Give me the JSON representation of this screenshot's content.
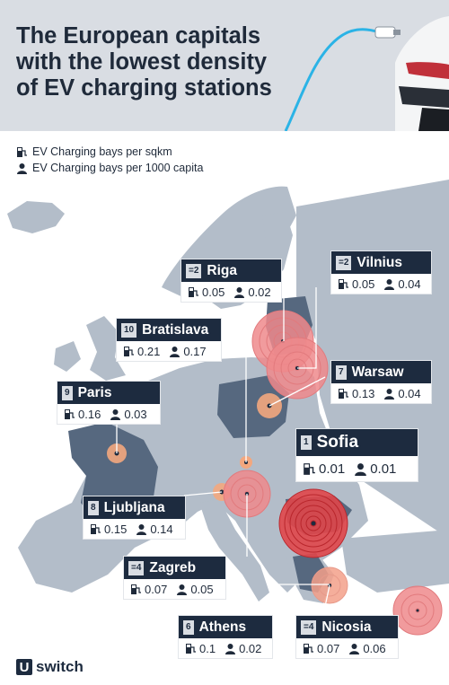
{
  "title_lines": [
    "The European capitals",
    "with the lowest density",
    "of EV charging stations"
  ],
  "legend": {
    "per_sqkm": "EV Charging bays per sqkm",
    "per_capita": "EV Charging bays per 1000 capita"
  },
  "cities": [
    {
      "rank": "=2",
      "name": "Riga",
      "sqkm": "0.05",
      "capita": "0.02"
    },
    {
      "rank": "=2",
      "name": "Vilnius",
      "sqkm": "0.05",
      "capita": "0.04"
    },
    {
      "rank": "10",
      "name": "Bratislava",
      "sqkm": "0.21",
      "capita": "0.17"
    },
    {
      "rank": "7",
      "name": "Warsaw",
      "sqkm": "0.13",
      "capita": "0.04"
    },
    {
      "rank": "9",
      "name": "Paris",
      "sqkm": "0.16",
      "capita": "0.03"
    },
    {
      "rank": "1",
      "name": "Sofia",
      "sqkm": "0.01",
      "capita": "0.01"
    },
    {
      "rank": "8",
      "name": "Ljubljana",
      "sqkm": "0.15",
      "capita": "0.14"
    },
    {
      "rank": "=4",
      "name": "Zagreb",
      "sqkm": "0.07",
      "capita": "0.05"
    },
    {
      "rank": "6",
      "name": "Athens",
      "sqkm": "0.1",
      "capita": "0.02"
    },
    {
      "rank": "=4",
      "name": "Nicosia",
      "sqkm": "0.07",
      "capita": "0.06"
    }
  ],
  "icons": {
    "sqkm": "ev-charger-icon",
    "capita": "person-icon"
  },
  "colors": {
    "header_bg": "#d9dde3",
    "title": "#1f2a3a",
    "label_dark": "#1d2b3f",
    "map_land": "#b3bdc9",
    "map_highlight": "#56687f",
    "ring_red": "#e0464a",
    "ring_orange": "#f3a77e"
  },
  "brand": {
    "logo_letter": "U",
    "logo_text": "switch"
  }
}
